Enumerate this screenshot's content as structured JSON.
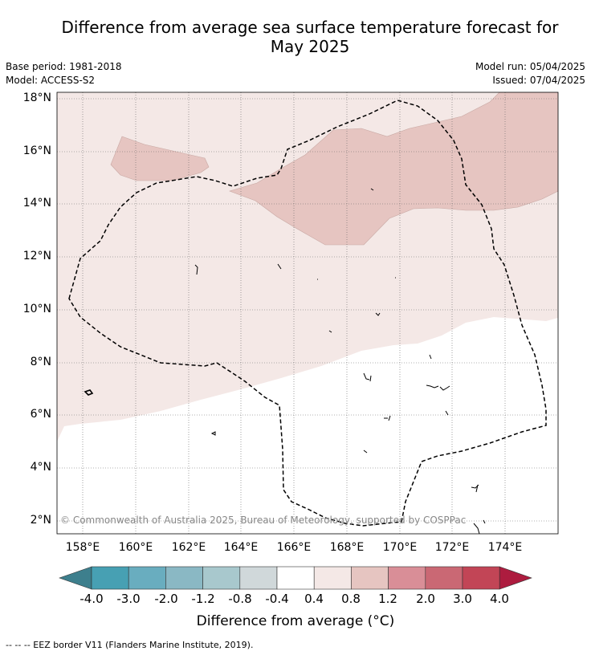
{
  "title": {
    "line1": "Difference from average sea surface temperature forecast for",
    "line2": "May 2025"
  },
  "meta": {
    "base_period": "Base period: 1981-2018",
    "model": "Model: ACCESS-S2",
    "model_run": "Model run: 05/04/2025",
    "issued": "Issued: 07/04/2025"
  },
  "map": {
    "lat_labels": [
      "18°N",
      "16°N",
      "14°N",
      "12°N",
      "10°N",
      "8°N",
      "6°N",
      "4°N",
      "2°N"
    ],
    "lon_labels": [
      "158°E",
      "160°E",
      "162°E",
      "164°E",
      "166°E",
      "168°E",
      "170°E",
      "172°E",
      "174°E"
    ],
    "copyright": "© Commonwealth of Australia 2025, Bureau of Meteorology, supported by COSPPac",
    "colors": {
      "zone_0_4": "#f4e8e6",
      "zone_0_8": "#e6c5c1",
      "eez_line": "#000000"
    }
  },
  "colorbar": {
    "ticks": [
      "-4.0",
      "-3.0",
      "-2.0",
      "-1.2",
      "-0.8",
      "-0.4",
      "0.4",
      "0.8",
      "1.2",
      "2.0",
      "3.0",
      "4.0"
    ],
    "colors": [
      "#3d7f8d",
      "#47a0b3",
      "#69adbf",
      "#8ab8c4",
      "#a8c8cd",
      "#d0d8da",
      "#ffffff",
      "#f4e8e6",
      "#e6c5c1",
      "#d98e97",
      "#ca6874",
      "#c24556",
      "#ad1c3f"
    ],
    "title": "Difference from average (°C)"
  },
  "legend": {
    "text": "-- -- -- EEZ border V11 (Flanders Marine Institute, 2019)."
  }
}
